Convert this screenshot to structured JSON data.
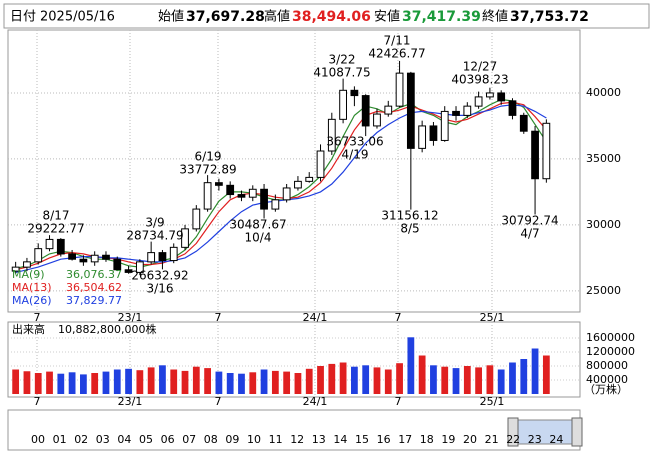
{
  "header": {
    "date_label": "日付",
    "date": "2025/05/16",
    "open_label": "始値",
    "open": "37,697.28",
    "high_label": "高値",
    "high": "38,494.06",
    "low_label": "安値",
    "low": "37,417.39",
    "close_label": "終値",
    "close": "37,753.72"
  },
  "chart_data": {
    "type": "candlestick",
    "ylim": [
      23400,
      44770
    ],
    "yticks": [
      25000,
      30000,
      35000,
      40000
    ],
    "grid": true,
    "up_color": "#ffffff",
    "down_color": "#000000",
    "xtick_labels": [
      "7",
      "23/1",
      "7",
      "24/1",
      "7",
      "25/1"
    ],
    "open": [
      26500,
      26800,
      27200,
      28200,
      28900,
      27800,
      27400,
      27200,
      27700,
      27400,
      26600,
      26400,
      27200,
      27900,
      27300,
      28300,
      29700,
      31200,
      33200,
      33000,
      32300,
      32100,
      32700,
      31200,
      31900,
      32800,
      33300,
      33600,
      35600,
      38000,
      40200,
      39800,
      37500,
      38400,
      39000,
      41500,
      35800,
      37500,
      36400,
      38600,
      38300,
      39000,
      39700,
      40000,
      39400,
      38300,
      37100,
      33500
    ],
    "high": [
      27200,
      27500,
      28600,
      29222,
      29000,
      28100,
      27700,
      28000,
      28000,
      27600,
      26900,
      27400,
      28734,
      28100,
      28600,
      30000,
      31500,
      33772,
      33500,
      33300,
      32600,
      33000,
      33100,
      32300,
      33100,
      33700,
      34000,
      36100,
      38500,
      41087,
      40500,
      39900,
      38800,
      39400,
      42426,
      41600,
      37900,
      37800,
      39000,
      39000,
      39300,
      40100,
      40398,
      40200,
      39600,
      38500,
      37500,
      38000
    ],
    "low": [
      26300,
      26500,
      27000,
      28000,
      27600,
      27300,
      26900,
      26900,
      27200,
      26500,
      26300,
      26200,
      27000,
      26632,
      27100,
      28100,
      29500,
      31000,
      32600,
      32000,
      31800,
      31800,
      30487,
      31000,
      31700,
      32600,
      33200,
      33300,
      35300,
      37700,
      39000,
      36733,
      37300,
      38200,
      38900,
      31156,
      35500,
      36000,
      36300,
      37900,
      38100,
      38800,
      39500,
      39100,
      38000,
      36900,
      30792,
      33200
    ],
    "close": [
      26800,
      27200,
      28200,
      28900,
      27800,
      27400,
      27200,
      27700,
      27400,
      26600,
      26400,
      27200,
      27900,
      27300,
      28300,
      29700,
      31200,
      33200,
      33000,
      32300,
      32100,
      32700,
      31200,
      31900,
      32800,
      33300,
      33600,
      35600,
      38000,
      40200,
      39800,
      37500,
      38400,
      39000,
      41500,
      35800,
      37500,
      36400,
      38600,
      38300,
      39000,
      39700,
      40000,
      39400,
      38300,
      37100,
      33500,
      37700
    ],
    "ma": [
      {
        "name": "MA(9)",
        "color": "#2e8b2e",
        "last_label": "36,076.37",
        "values": [
          26700,
          26900,
          27300,
          27800,
          28000,
          27900,
          27600,
          27400,
          27400,
          27200,
          26900,
          26800,
          27000,
          27300,
          27500,
          28100,
          29100,
          30500,
          31800,
          32500,
          32500,
          32400,
          32100,
          31900,
          31900,
          32300,
          32900,
          33700,
          35000,
          36700,
          38300,
          39000,
          38800,
          38400,
          38900,
          39200,
          38600,
          38300,
          37800,
          37600,
          38200,
          38600,
          39100,
          39500,
          39400,
          38900,
          37600,
          36300
        ]
      },
      {
        "name": "MA(13)",
        "color": "#e02020",
        "last_label": "36,504.62",
        "values": [
          26600,
          26800,
          27100,
          27500,
          27800,
          27900,
          27800,
          27600,
          27500,
          27400,
          27200,
          27000,
          27000,
          27100,
          27400,
          27800,
          28600,
          29800,
          31000,
          31900,
          32300,
          32400,
          32300,
          32100,
          32000,
          32100,
          32500,
          33200,
          34300,
          35700,
          37200,
          38300,
          38600,
          38500,
          38700,
          39000,
          38700,
          38400,
          38000,
          37800,
          38000,
          38400,
          38800,
          39200,
          39300,
          39100,
          38200,
          37200
        ]
      },
      {
        "name": "MA(26)",
        "color": "#2040e0",
        "last_label": "37,829.77",
        "values": [
          26400,
          26600,
          26800,
          27100,
          27400,
          27500,
          27600,
          27600,
          27500,
          27500,
          27400,
          27300,
          27200,
          27200,
          27300,
          27500,
          28000,
          28700,
          29500,
          30300,
          31000,
          31500,
          31700,
          31800,
          31900,
          32000,
          32200,
          32500,
          33100,
          34000,
          35100,
          36200,
          37000,
          37600,
          38100,
          38500,
          38600,
          38500,
          38400,
          38300,
          38300,
          38500,
          38700,
          39000,
          39100,
          39000,
          38600,
          38100
        ]
      }
    ],
    "annotations": [
      {
        "date": "8/17",
        "value": 29222.77
      },
      {
        "date": "3/9",
        "value": 28734.79
      },
      {
        "date": "3/16",
        "value": 26632.92
      },
      {
        "date": "6/19",
        "value": 33772.89
      },
      {
        "date": "10/4",
        "value": 30487.67
      },
      {
        "date": "3/22",
        "value": 41087.75
      },
      {
        "date": "4/19",
        "value": 36733.06
      },
      {
        "date": "7/11",
        "value": 42426.77
      },
      {
        "date": "8/5",
        "value": 31156.12
      },
      {
        "date": "12/27",
        "value": 40398.23
      },
      {
        "date": "4/7",
        "value": 30792.74
      }
    ],
    "volume": {
      "type": "bar",
      "label": "出来高",
      "total_label": "10,882,800,000株",
      "unit": "（万株）",
      "up_color": "#e02020",
      "down_color": "#2040e0",
      "ylim": [
        0,
        2000000
      ],
      "yticks": [
        400000,
        800000,
        1200000,
        1600000
      ],
      "values": [
        700000,
        650000,
        600000,
        640000,
        580000,
        620000,
        560000,
        600000,
        640000,
        700000,
        720000,
        680000,
        760000,
        820000,
        700000,
        660000,
        780000,
        740000,
        640000,
        600000,
        580000,
        620000,
        700000,
        660000,
        640000,
        600000,
        720000,
        800000,
        860000,
        900000,
        780000,
        820000,
        760000,
        700000,
        880000,
        1620000,
        1100000,
        820000,
        780000,
        740000,
        800000,
        760000,
        820000,
        700000,
        900000,
        1000000,
        1300000,
        1100000
      ]
    }
  },
  "navigator": {
    "labels": [
      "00",
      "01",
      "02",
      "03",
      "04",
      "05",
      "06",
      "07",
      "08",
      "09",
      "10",
      "11",
      "12",
      "13",
      "14",
      "15",
      "16",
      "17",
      "18",
      "19",
      "20",
      "21",
      "22",
      "23",
      "24"
    ]
  }
}
